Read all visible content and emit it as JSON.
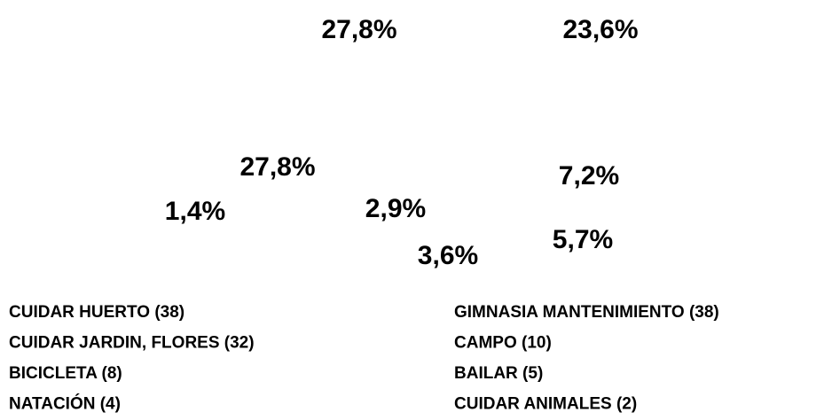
{
  "chart_data": {
    "type": "pie",
    "categories": [
      "CUIDAR HUERTO (38)",
      "GIMNASIA MANTENIMIENTO (38)",
      "CUIDAR JARDIN, FLORES (32)",
      "CAMPO (10)",
      "BICICLETA (8)",
      "BAILAR (5)",
      "NATACIÓN (4)",
      "CUIDAR ANIMALES (2)"
    ],
    "values": [
      27.8,
      27.8,
      23.6,
      7.2,
      5.7,
      3.6,
      2.9,
      1.4
    ],
    "value_labels": [
      "27,8%",
      "27,8%",
      "23,6%",
      "7,2%",
      "5,7%",
      "3,6%",
      "2,9%",
      "1,4%"
    ],
    "colors": [
      "#ffffff",
      "#ffffff",
      "#ffffff",
      "#ffffff",
      "#ffffff",
      "#ffffff",
      "#ffffff",
      "#ffffff"
    ]
  }
}
